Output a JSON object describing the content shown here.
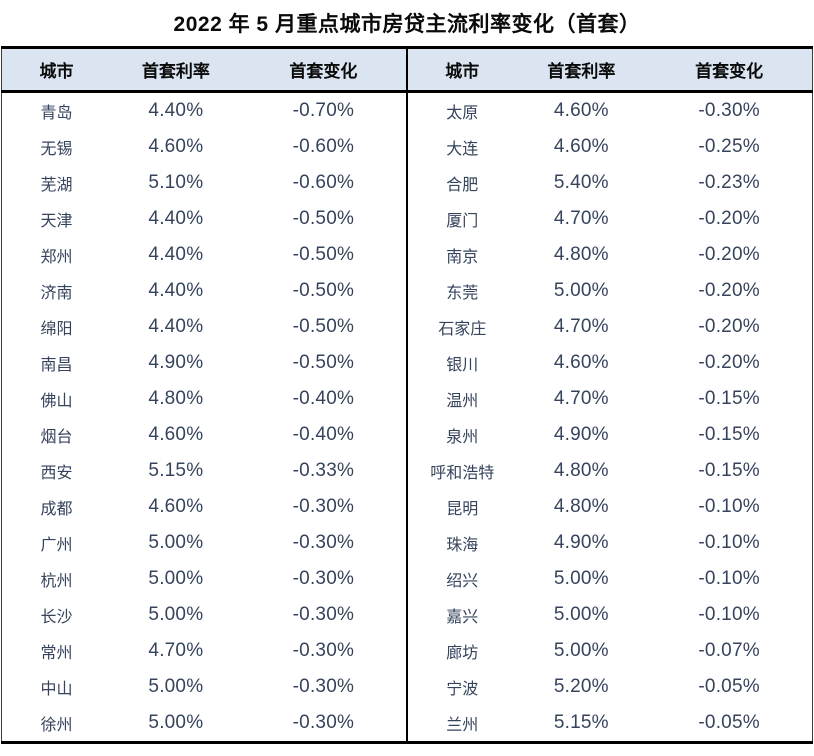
{
  "title": "2022 年 5 月重点城市房贷主流利率变化（首套）",
  "colors": {
    "header_bg": "#dbe5f1",
    "rule": "#000000",
    "body_text": "#36435c",
    "header_text": "#0a0a0a"
  },
  "chart_data": {
    "type": "table",
    "title": "2022 年 5 月重点城市房贷主流利率变化（首套）",
    "headers": [
      "城市",
      "首套利率",
      "首套变化",
      "城市",
      "首套利率",
      "首套变化"
    ],
    "rows": [
      [
        "青岛",
        "4.40%",
        "-0.70%",
        "太原",
        "4.60%",
        "-0.30%"
      ],
      [
        "无锡",
        "4.60%",
        "-0.60%",
        "大连",
        "4.60%",
        "-0.25%"
      ],
      [
        "芜湖",
        "5.10%",
        "-0.60%",
        "合肥",
        "5.40%",
        "-0.23%"
      ],
      [
        "天津",
        "4.40%",
        "-0.50%",
        "厦门",
        "4.70%",
        "-0.20%"
      ],
      [
        "郑州",
        "4.40%",
        "-0.50%",
        "南京",
        "4.80%",
        "-0.20%"
      ],
      [
        "济南",
        "4.40%",
        "-0.50%",
        "东莞",
        "5.00%",
        "-0.20%"
      ],
      [
        "绵阳",
        "4.40%",
        "-0.50%",
        "石家庄",
        "4.70%",
        "-0.20%"
      ],
      [
        "南昌",
        "4.90%",
        "-0.50%",
        "银川",
        "4.60%",
        "-0.20%"
      ],
      [
        "佛山",
        "4.80%",
        "-0.40%",
        "温州",
        "4.70%",
        "-0.15%"
      ],
      [
        "烟台",
        "4.60%",
        "-0.40%",
        "泉州",
        "4.90%",
        "-0.15%"
      ],
      [
        "西安",
        "5.15%",
        "-0.33%",
        "呼和浩特",
        "4.80%",
        "-0.15%"
      ],
      [
        "成都",
        "4.60%",
        "-0.30%",
        "昆明",
        "4.80%",
        "-0.10%"
      ],
      [
        "广州",
        "5.00%",
        "-0.30%",
        "珠海",
        "4.90%",
        "-0.10%"
      ],
      [
        "杭州",
        "5.00%",
        "-0.30%",
        "绍兴",
        "5.00%",
        "-0.10%"
      ],
      [
        "长沙",
        "5.00%",
        "-0.30%",
        "嘉兴",
        "5.00%",
        "-0.10%"
      ],
      [
        "常州",
        "4.70%",
        "-0.30%",
        "廊坊",
        "5.00%",
        "-0.07%"
      ],
      [
        "中山",
        "5.00%",
        "-0.30%",
        "宁波",
        "5.20%",
        "-0.05%"
      ],
      [
        "徐州",
        "5.00%",
        "-0.30%",
        "兰州",
        "5.15%",
        "-0.05%"
      ]
    ]
  }
}
